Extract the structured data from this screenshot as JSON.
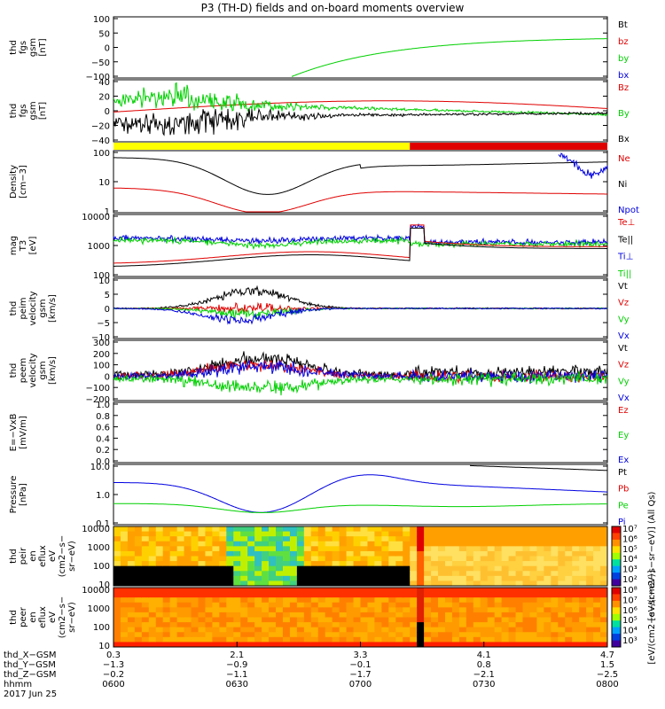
{
  "title": "P3 (TH-D) fields and on-board moments overview",
  "colors": {
    "black": "#000000",
    "red": "#e00000",
    "green": "#00d000",
    "blue": "#0000e0",
    "yellow": "#ffff00",
    "barred": "#e00000"
  },
  "chart_data": [
    {
      "type": "line",
      "id": "fgs_low",
      "ylabel": [
        "thd",
        "fgs",
        "gsm",
        "[nT]"
      ],
      "yticks": [
        "100",
        "50",
        "0",
        "−50",
        "−100"
      ],
      "ylim": [
        -100,
        100
      ],
      "legend": [
        {
          "label": "Bt",
          "color": "black"
        },
        {
          "label": "bz",
          "color": "red"
        },
        {
          "label": "by",
          "color": "green"
        },
        {
          "label": "bx",
          "color": "blue"
        }
      ]
    },
    {
      "type": "line",
      "id": "fgs",
      "ylabel": [
        "thd",
        "fgs",
        "gsm",
        "[nT]"
      ],
      "yticks": [
        "40",
        "20",
        "0",
        "−20",
        "−40"
      ],
      "ylim": [
        -40,
        40
      ],
      "legend": [
        {
          "label": "Bz",
          "color": "red"
        },
        {
          "label": "By",
          "color": "green"
        },
        {
          "label": "Bx",
          "color": "black"
        }
      ]
    },
    {
      "type": "bar",
      "id": "mode_bar",
      "segments": [
        {
          "color": "yellow",
          "from": 0.0,
          "to": 0.6
        },
        {
          "color": "barred",
          "from": 0.6,
          "to": 1.0
        }
      ]
    },
    {
      "type": "line",
      "id": "density",
      "ylabel": [
        "Density",
        "[cm−3]"
      ],
      "yticks": [
        "100",
        "10",
        "1"
      ],
      "scale": "log",
      "legend": [
        {
          "label": "Ne",
          "color": "red"
        },
        {
          "label": "Ni",
          "color": "black"
        },
        {
          "label": "Npot",
          "color": "blue"
        }
      ]
    },
    {
      "type": "line",
      "id": "temperature",
      "ylabel": [
        "mag",
        "T3",
        "[eV]"
      ],
      "yticks": [
        "10000",
        "1000",
        "100"
      ],
      "scale": "log",
      "legend": [
        {
          "label": "Te⊥",
          "color": "red"
        },
        {
          "label": "Te||",
          "color": "black"
        },
        {
          "label": "Ti⊥",
          "color": "blue"
        },
        {
          "label": "Ti||",
          "color": "green"
        }
      ]
    },
    {
      "type": "line",
      "id": "peim_vel",
      "ylabel": [
        "thd",
        "peim",
        "velocity",
        "gsm",
        "[km/s]"
      ],
      "yticks": [
        "10",
        "5",
        "0",
        "−5",
        "−10"
      ],
      "ylim": [
        -10,
        10
      ],
      "legend": [
        {
          "label": "Vt",
          "color": "black"
        },
        {
          "label": "Vz",
          "color": "red"
        },
        {
          "label": "Vy",
          "color": "green"
        },
        {
          "label": "Vx",
          "color": "blue"
        }
      ]
    },
    {
      "type": "line",
      "id": "peem_vel",
      "ylabel": [
        "thd",
        "peem",
        "velocity",
        "gsm",
        "[km/s]"
      ],
      "yticks": [
        "300",
        "200",
        "100",
        "0",
        "−100",
        "−200"
      ],
      "ylim": [
        -200,
        300
      ],
      "legend": [
        {
          "label": "Vt",
          "color": "black"
        },
        {
          "label": "Vz",
          "color": "red"
        },
        {
          "label": "Vy",
          "color": "green"
        },
        {
          "label": "Vx",
          "color": "blue"
        }
      ]
    },
    {
      "type": "line",
      "id": "efield",
      "ylabel": [
        "E=−VxB",
        "[mV/m]"
      ],
      "yticks": [
        "1.0",
        "0.8",
        "0.6",
        "0.4",
        "0.2",
        "0.0"
      ],
      "ylim": [
        0,
        1
      ],
      "legend": [
        {
          "label": "Ez",
          "color": "red"
        },
        {
          "label": "Ey",
          "color": "green"
        },
        {
          "label": "Ex",
          "color": "blue"
        }
      ]
    },
    {
      "type": "line",
      "id": "pressure",
      "ylabel": [
        "Pressure",
        "[nPa]"
      ],
      "yticks": [
        "10.0",
        "1.0",
        "0.1"
      ],
      "scale": "log",
      "legend": [
        {
          "label": "Pt",
          "color": "black"
        },
        {
          "label": "Pb",
          "color": "red"
        },
        {
          "label": "Pe",
          "color": "green"
        },
        {
          "label": "Pi",
          "color": "blue"
        }
      ]
    },
    {
      "type": "heatmap",
      "id": "peir",
      "ylabel": [
        "thd",
        "peir",
        "en",
        "eflux",
        "eV",
        "(cm2−s−",
        "sr−eV)"
      ],
      "yticks": [
        "10000",
        "1000",
        "100",
        "10"
      ],
      "colorbar_ticks": [
        "10⁷",
        "10⁶",
        "10⁵",
        "10⁴",
        "10³",
        "10²"
      ],
      "colorbar_label": "[eV/(cm2−s−sr−eV)] (All Qs)"
    },
    {
      "type": "heatmap",
      "id": "peer",
      "ylabel": [
        "thd",
        "peer",
        "en",
        "eflux",
        "eV",
        "(cm2−s−",
        "sr−eV)"
      ],
      "yticks": [
        "10000",
        "1000",
        "100",
        "10"
      ],
      "colorbar_ticks": [
        "10⁸",
        "10⁷",
        "10⁶",
        "10⁵",
        "10⁴",
        "10³"
      ],
      "colorbar_label": "[eV/(cm2−s−sr−eV)]"
    }
  ],
  "xaxis": {
    "rows": [
      {
        "label": "thd_X−GSM",
        "values": [
          "0.3",
          "2.1",
          "3.3",
          "4.1",
          "4.7"
        ]
      },
      {
        "label": "thd_Y−GSM",
        "values": [
          "−1.3",
          "−0.9",
          "−0.1",
          "0.8",
          "1.5"
        ]
      },
      {
        "label": "thd_Z−GSM",
        "values": [
          "−0.2",
          "−1.1",
          "−1.7",
          "−2.1",
          "−2.5"
        ]
      },
      {
        "label": "hhmm",
        "values": [
          "0600",
          "0630",
          "0700",
          "0730",
          "0800"
        ]
      }
    ],
    "date": "2017 Jun 25"
  }
}
